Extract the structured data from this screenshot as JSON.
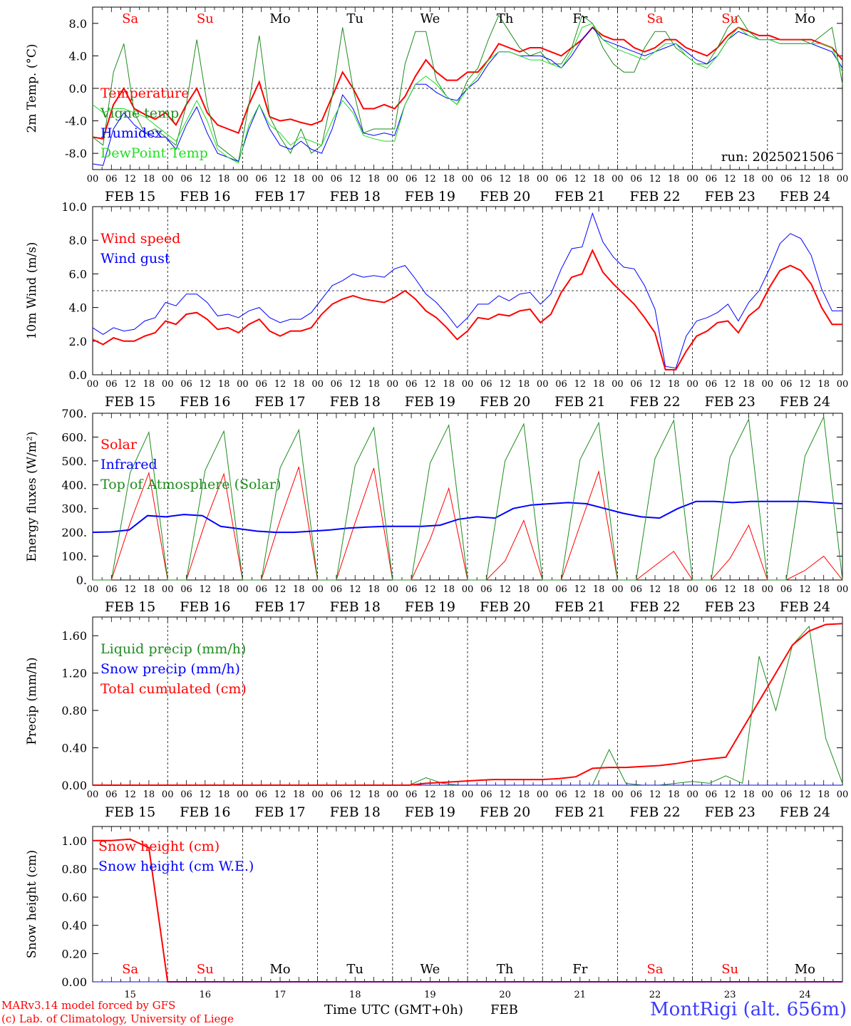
{
  "footer": {
    "model": "MARv3.14 model forced by GFS",
    "credit": "(c) Lab. of Climatology, University of Liege",
    "xaxis_title": "Time UTC (GMT+0h)",
    "month": "FEB",
    "station": "MontRigi (alt. 656m)"
  },
  "colors": {
    "red": "#ff0000",
    "green": "#1e8c1e",
    "blue": "#0000ff",
    "lime": "#22dd22",
    "weekend": "#ff0000",
    "weekday": "#000000"
  },
  "chart_data": {
    "days": [
      "FEB 15",
      "FEB 16",
      "FEB 17",
      "FEB 18",
      "FEB 19",
      "FEB 20",
      "FEB 21",
      "FEB 22",
      "FEB 23",
      "FEB 24"
    ],
    "day_numbers": [
      "15",
      "16",
      "17",
      "18",
      "19",
      "20",
      "21",
      "22",
      "23",
      "24"
    ],
    "weekdays": [
      "Sa",
      "Su",
      "Mo",
      "Tu",
      "We",
      "Th",
      "Fr",
      "Sa",
      "Su",
      "Mo"
    ],
    "weekend": [
      true,
      true,
      false,
      false,
      false,
      false,
      false,
      true,
      true,
      false
    ],
    "hour_ticks": [
      "00",
      "06",
      "12",
      "18"
    ],
    "panels": [
      {
        "type": "line",
        "ylabel": "2m Temp. (°C)",
        "ylim": [
          -10,
          10
        ],
        "yticks": [
          "-8.0",
          "-4.0",
          "0.0",
          "4.0",
          "8.0"
        ],
        "yticks_values": [
          -8,
          -4,
          0,
          4,
          8
        ],
        "hline": 0,
        "run_label": "run: 2025021506",
        "series": [
          {
            "name": "Temperature",
            "color": "#ff0000",
            "width": 2,
            "values": [
              -6,
              -6.2,
              -2,
              0,
              -2.5,
              -3.2,
              -3.8,
              -3,
              -4.5,
              -2,
              0,
              -3,
              -4.5,
              -5,
              -5.5,
              -2,
              0.8,
              -3.5,
              -4,
              -3.8,
              -4.2,
              -4.5,
              -4,
              -1,
              2,
              0,
              -2.5,
              -2.5,
              -2,
              -2.5,
              -1,
              1.5,
              3.5,
              2,
              1,
              1,
              2,
              2,
              3.5,
              5.5,
              5,
              4.5,
              5,
              5,
              4.5,
              4,
              5,
              6,
              7.5,
              6.5,
              6,
              6,
              5,
              4.5,
              5,
              6,
              6,
              5,
              4.5,
              4,
              5,
              6.5,
              7.5,
              7,
              6.5,
              6.5,
              6,
              6,
              6,
              6,
              5.5,
              5,
              3.5
            ]
          },
          {
            "name": "Vigne temp",
            "color": "#1e8c1e",
            "width": 1,
            "values": [
              -6,
              -7,
              2,
              5.5,
              -3,
              -5.5,
              -5,
              -6,
              -7,
              -2,
              6,
              -2,
              -7,
              -8,
              -9,
              -2,
              6.5,
              -3.5,
              -6,
              -8,
              -5,
              -8,
              -7,
              -1,
              7.5,
              0,
              -5.5,
              -5,
              -5,
              -5,
              3,
              7,
              7,
              1,
              -1,
              -2,
              1,
              2.5,
              6,
              9,
              7,
              5,
              4,
              4.5,
              3,
              3,
              5,
              9,
              8,
              5,
              3,
              2,
              2,
              5,
              7,
              7,
              5,
              4,
              3,
              3,
              5,
              7.5,
              9,
              7,
              6,
              6,
              6,
              6,
              6,
              5.5,
              6.5,
              7.5,
              0.5
            ]
          },
          {
            "name": "Humidex",
            "color": "#0000ff",
            "width": 1,
            "values": [
              -9.3,
              -9.5,
              -5,
              -3,
              -4.5,
              -5.5,
              -6,
              -6,
              -7.5,
              -4.5,
              -2.3,
              -5.5,
              -8,
              -8.5,
              -9,
              -5,
              -2,
              -5,
              -7,
              -7.5,
              -6.5,
              -7.5,
              -8,
              -5,
              -0.8,
              -2.5,
              -5.5,
              -5.8,
              -5.5,
              -5.8,
              -2,
              0.5,
              0.5,
              -0.5,
              -1.2,
              -1.5,
              0,
              1,
              3,
              4.5,
              4.5,
              4,
              4,
              4,
              3.5,
              2.5,
              4,
              6,
              7.5,
              6,
              5.5,
              5,
              4.5,
              4,
              4.5,
              5,
              5.5,
              4.5,
              3.5,
              3,
              4,
              6,
              7,
              6.5,
              6,
              6,
              5.5,
              5.5,
              5.5,
              5.5,
              5,
              4.5,
              2.5
            ]
          },
          {
            "name": "DewPoint Temp",
            "color": "#22dd22",
            "width": 1,
            "values": [
              -2,
              -3,
              -2.5,
              -2.5,
              -3,
              -3.5,
              -4.5,
              -5.5,
              -6.5,
              -4,
              -1.5,
              -4,
              -7.5,
              -8.5,
              -9.2,
              -4.5,
              -2,
              -4.5,
              -5.5,
              -7,
              -6,
              -6.5,
              -7,
              -4,
              -1.5,
              -3,
              -5.8,
              -6.2,
              -6.5,
              -6.5,
              -2,
              0.5,
              1.5,
              0.5,
              -1,
              -2,
              0,
              1.5,
              3.5,
              4.5,
              4.5,
              4,
              3.5,
              3.5,
              3,
              2.5,
              4.5,
              7.5,
              8,
              6,
              5,
              4.5,
              4,
              3.5,
              4.5,
              5.5,
              5.5,
              4,
              3,
              2.5,
              4,
              6,
              7.5,
              6.5,
              6,
              6,
              5.5,
              5.5,
              5.5,
              5.5,
              5.5,
              5,
              2
            ]
          }
        ]
      },
      {
        "type": "line",
        "ylabel": "10m Wind (m/s)",
        "ylim": [
          0,
          10
        ],
        "yticks": [
          "0.0",
          "2.0",
          "4.0",
          "6.0",
          "8.0",
          "10.0"
        ],
        "yticks_values": [
          0,
          2,
          4,
          6,
          8,
          10
        ],
        "hline": 5,
        "series": [
          {
            "name": "Wind speed",
            "color": "#ff0000",
            "width": 2,
            "values": [
              2.1,
              1.8,
              2.2,
              2,
              2,
              2.3,
              2.5,
              3.2,
              3,
              3.6,
              3.7,
              3.3,
              2.7,
              2.8,
              2.5,
              3,
              3.3,
              2.6,
              2.3,
              2.6,
              2.6,
              2.8,
              3.6,
              4.2,
              4.5,
              4.7,
              4.5,
              4.4,
              4.3,
              4.6,
              5,
              4.5,
              3.8,
              3.4,
              2.8,
              2.1,
              2.6,
              3.4,
              3.3,
              3.6,
              3.5,
              3.8,
              3.9,
              3.1,
              3.6,
              4.9,
              5.8,
              6,
              7.4,
              6.1,
              5.4,
              4.8,
              4.2,
              3.4,
              2.5,
              0.3,
              0.3,
              1.4,
              2.3,
              2.6,
              3.1,
              3.2,
              2.5,
              3.5,
              4,
              5.2,
              6.2,
              6.5,
              6.2,
              5.4,
              4,
              3,
              3
            ]
          },
          {
            "name": "Wind gust",
            "color": "#0000ff",
            "width": 1,
            "values": [
              2.8,
              2.4,
              2.8,
              2.6,
              2.7,
              3.2,
              3.4,
              4.3,
              4.1,
              4.8,
              4.8,
              4.3,
              3.5,
              3.6,
              3.4,
              3.8,
              4,
              3.4,
              3.1,
              3.3,
              3.3,
              3.7,
              4.5,
              5.3,
              5.6,
              6,
              5.8,
              5.9,
              5.8,
              6.3,
              6.5,
              5.7,
              4.8,
              4.3,
              3.6,
              2.8,
              3.4,
              4.2,
              4.2,
              4.7,
              4.4,
              4.8,
              4.9,
              4.2,
              4.8,
              6.3,
              7.5,
              7.6,
              9.6,
              7.9,
              7,
              6.4,
              6.3,
              5.3,
              3.9,
              0.5,
              0.4,
              2.3,
              3.2,
              3.4,
              3.7,
              4.2,
              3.2,
              4.3,
              5,
              6.3,
              7.8,
              8.4,
              8.1,
              7.1,
              5.1,
              3.8,
              3.8
            ]
          }
        ]
      },
      {
        "type": "line",
        "ylabel": "Energy fluxes (W/m²)",
        "ylim": [
          0,
          700
        ],
        "yticks": [
          "0.",
          "100.",
          "200.",
          "300.",
          "400.",
          "500.",
          "600.",
          "700."
        ],
        "yticks_values": [
          0,
          100,
          200,
          300,
          400,
          500,
          600,
          700
        ],
        "series": [
          {
            "name": "Solar",
            "color": "#ff0000",
            "width": 1,
            "values": [
              0,
              0,
              240,
              450,
              0,
              0,
              240,
              445,
              0,
              0,
              250,
              475,
              0,
              0,
              240,
              470,
              0,
              0,
              170,
              385,
              0,
              0,
              80,
              250,
              0,
              0,
              230,
              455,
              0,
              0,
              60,
              120,
              0,
              0,
              90,
              230,
              0,
              0,
              40,
              100,
              0
            ]
          },
          {
            "name": "Infrared",
            "color": "#0000ff",
            "width": 2,
            "values": [
              200,
              202,
              210,
              270,
              265,
              275,
              270,
              225,
              215,
              205,
              200,
              200,
              205,
              210,
              218,
              222,
              225,
              225,
              225,
              230,
              255,
              265,
              260,
              300,
              315,
              320,
              325,
              320,
              300,
              280,
              265,
              260,
              300,
              330,
              330,
              325,
              330,
              330,
              330,
              330,
              325,
              320
            ]
          },
          {
            "name": "Top of Atmosphere (Solar)",
            "color": "#1e8c1e",
            "width": 1,
            "values": [
              0,
              0,
              450,
              620,
              0,
              0,
              460,
              625,
              0,
              0,
              470,
              630,
              0,
              0,
              480,
              640,
              0,
              0,
              490,
              650,
              0,
              0,
              500,
              655,
              0,
              0,
              505,
              660,
              0,
              0,
              510,
              670,
              0,
              0,
              515,
              675,
              0,
              0,
              520,
              685,
              0
            ]
          }
        ]
      },
      {
        "type": "line",
        "ylabel": "Precip (mm/h)",
        "ylim": [
          0,
          1.8
        ],
        "yticks": [
          "0.00",
          "0.40",
          "0.80",
          "1.20",
          "1.60"
        ],
        "yticks_values": [
          0,
          0.4,
          0.8,
          1.2,
          1.6
        ],
        "series": [
          {
            "name": "Liquid precip (mm/h)",
            "color": "#1e8c1e",
            "width": 1,
            "values": [
              0,
              0,
              0,
              0,
              0,
              0,
              0,
              0,
              0,
              0,
              0,
              0,
              0,
              0,
              0,
              0,
              0,
              0,
              0,
              0,
              0.08,
              0.02,
              0,
              0,
              0,
              0,
              0,
              0,
              0,
              0,
              0,
              0.38,
              0.02,
              0,
              0,
              0.02,
              0.04,
              0.02,
              0.1,
              0.02,
              1.38,
              0.8,
              1.5,
              1.7,
              0.5,
              0.02
            ]
          },
          {
            "name": "Snow precip (mm/h)",
            "color": "#0000ff",
            "width": 1,
            "values": [
              0,
              0,
              0,
              0,
              0,
              0,
              0,
              0,
              0,
              0,
              0,
              0,
              0,
              0,
              0,
              0,
              0,
              0,
              0,
              0,
              0,
              0,
              0,
              0,
              0,
              0,
              0,
              0,
              0,
              0,
              0,
              0,
              0,
              0,
              0,
              0,
              0,
              0,
              0,
              0,
              0,
              0,
              0,
              0,
              0,
              0
            ]
          },
          {
            "name": "Total cumulated (cm)",
            "color": "#ff0000",
            "width": 2,
            "values": [
              0,
              0,
              0,
              0,
              0,
              0,
              0,
              0,
              0,
              0,
              0,
              0,
              0,
              0,
              0,
              0,
              0,
              0,
              0,
              0,
              0.02,
              0.03,
              0.04,
              0.05,
              0.06,
              0.06,
              0.06,
              0.06,
              0.07,
              0.09,
              0.18,
              0.19,
              0.19,
              0.2,
              0.21,
              0.23,
              0.26,
              0.28,
              0.3,
              0.6,
              0.9,
              1.2,
              1.5,
              1.65,
              1.72,
              1.73
            ]
          }
        ]
      },
      {
        "type": "line",
        "ylabel": "Snow height (cm)",
        "ylim": [
          0,
          1.1
        ],
        "yticks": [
          "0.00",
          "0.20",
          "0.40",
          "0.60",
          "0.80",
          "1.00"
        ],
        "yticks_values": [
          0,
          0.2,
          0.4,
          0.6,
          0.8,
          1.0
        ],
        "series": [
          {
            "name": "Snow height (cm)",
            "color": "#ff0000",
            "width": 2,
            "values": [
              1.0,
              1.0,
              1.01,
              0.95,
              0,
              0,
              0,
              0,
              0,
              0,
              0,
              0,
              0,
              0,
              0,
              0,
              0,
              0,
              0,
              0,
              0,
              0,
              0,
              0,
              0,
              0,
              0,
              0,
              0,
              0,
              0,
              0,
              0,
              0,
              0,
              0,
              0,
              0,
              0,
              0,
              0
            ]
          },
          {
            "name": "Snow height (cm W.E.)",
            "color": "#0000ff",
            "width": 1,
            "values": [
              0,
              0,
              0,
              0,
              0,
              0,
              0,
              0,
              0,
              0,
              0,
              0,
              0,
              0,
              0,
              0,
              0,
              0,
              0,
              0,
              0,
              0,
              0,
              0,
              0,
              0,
              0,
              0,
              0,
              0,
              0,
              0,
              0,
              0,
              0,
              0,
              0,
              0,
              0,
              0,
              0
            ]
          }
        ]
      }
    ]
  }
}
